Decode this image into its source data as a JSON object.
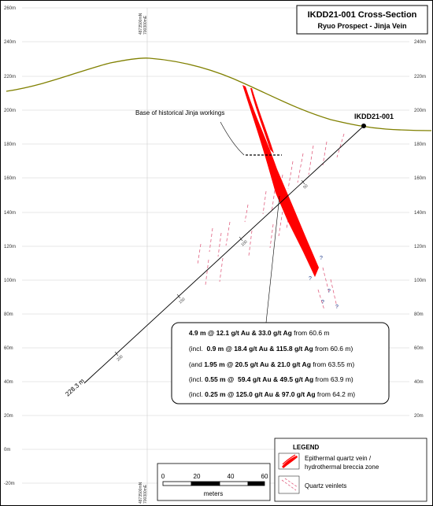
{
  "title": {
    "line1": "IKDD21-001 Cross-Section",
    "line2": "Ryuo Prospect - Jinja Vein"
  },
  "grid": {
    "elevation_labels": [
      "260m",
      "240m",
      "220m",
      "200m",
      "180m",
      "160m",
      "140m",
      "120m",
      "100m",
      "80m",
      "60m",
      "40m",
      "20m",
      "0m",
      "-20m"
    ],
    "top_coords": [
      "4873500mN",
      "700300mE"
    ],
    "bottom_coords": [
      "4873500mN",
      "700300mE"
    ]
  },
  "drillhole": {
    "name": "IKDD21-001",
    "end_depth": "228.3 m",
    "depth_ticks": [
      "50",
      "100",
      "150",
      "200"
    ]
  },
  "annotations": {
    "historical_workings": "Base of historical Jinja workings",
    "unknown_marker": "?"
  },
  "results": [
    {
      "prefix": "",
      "length": "4.9 m @ ",
      "au": "12.1 g/t Au",
      "amp": " & ",
      "ag": "33.0 g/t Ag",
      "from": " from 60.6 m",
      "suffix": ""
    },
    {
      "prefix": "(incl.  ",
      "length": "0.9 m @ ",
      "au": "18.4 g/t Au",
      "amp": " & ",
      "ag": "115.8 g/t Ag",
      "from": " from 60.6 m",
      "suffix": ")"
    },
    {
      "prefix": "(and ",
      "length": "1.95 m @ ",
      "au": "20.5 g/t Au",
      "amp": " & ",
      "ag": "21.0 g/t Ag",
      "from": " from 63.55 m",
      "suffix": ")"
    },
    {
      "prefix": "(incl. ",
      "length": "0.55 m @  ",
      "au": "59.4 g/t Au",
      "amp": " & ",
      "ag": "49.5 g/t Ag",
      "from": " from 63.9 m",
      "suffix": ")"
    },
    {
      "prefix": "(incl. ",
      "length": "0.25 m @ ",
      "au": "125.0 g/t Au",
      "amp": " & ",
      "ag": "97.0 g/t Ag",
      "from": " from 64.2 m",
      "suffix": ")"
    }
  ],
  "scale_bar": {
    "ticks": [
      "0",
      "20",
      "40",
      "60"
    ],
    "unit": "meters"
  },
  "legend": {
    "title": "LEGEND",
    "items": [
      {
        "line1": "Epithermal quartz vein /",
        "line2": "hydrothermal breccia zone",
        "icon": "vein-swatch-icon"
      },
      {
        "line1": "Quartz veinlets",
        "line2": "",
        "icon": "veinlet-swatch-icon"
      }
    ]
  },
  "colors": {
    "topography": "#808000",
    "vein": "#ff0000",
    "veinlet": "#e06080",
    "grid": "#cfcfcf",
    "drillhole": "#000000"
  }
}
